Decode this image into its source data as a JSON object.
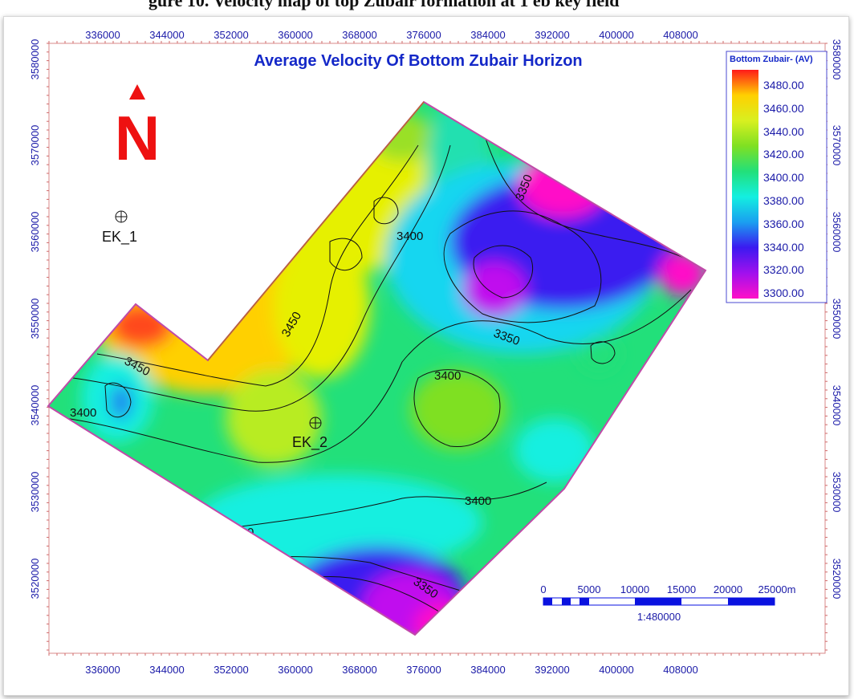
{
  "caption_fragment": "gure 10. Velocity map of top Zubair formation at 1 eb key field",
  "map": {
    "title": "Average Velocity Of Bottom Zubair Horizon",
    "north_label": "N",
    "x_ticks": [
      "336000",
      "344000",
      "352000",
      "360000",
      "368000",
      "376000",
      "384000",
      "392000",
      "400000",
      "408000"
    ],
    "y_ticks": [
      "3580000",
      "3570000",
      "3560000",
      "3550000",
      "3540000",
      "3530000",
      "3520000"
    ],
    "contour_labels": [
      "3350",
      "3400",
      "3450",
      "3450",
      "3350",
      "3400",
      "3400",
      "3400",
      "3400",
      "3350"
    ],
    "wells": [
      {
        "name": "EK_1"
      },
      {
        "name": "EK_2"
      }
    ],
    "legend": {
      "title": "Bottom Zubair- (AV)",
      "values": [
        "3480.00",
        "3460.00",
        "3440.00",
        "3420.00",
        "3400.00",
        "3380.00",
        "3360.00",
        "3340.00",
        "3320.00",
        "3300.00"
      ],
      "colors": [
        "#ff1a1a",
        "#ffd000",
        "#d8f020",
        "#7fe022",
        "#22e07a",
        "#13efe0",
        "#1a9ff0",
        "#3b1af0",
        "#a010ee",
        "#ff10c8"
      ]
    },
    "scale_bar": {
      "labels": [
        "0",
        "5000",
        "10000",
        "15000",
        "20000",
        "25000m"
      ],
      "ratio": "1:480000"
    }
  },
  "colors": {
    "title": "#1428c8",
    "axis_text": "#1a1aa8",
    "boundary": "#c04aa8",
    "north_arrow": "#ee1111"
  }
}
